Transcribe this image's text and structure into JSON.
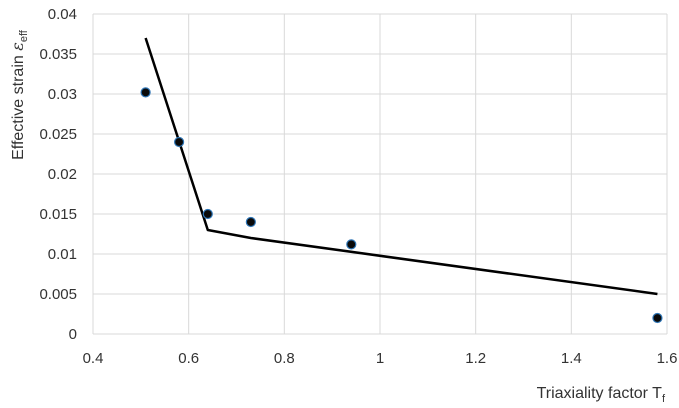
{
  "chart_data": {
    "type": "scatter",
    "title": "",
    "xlabel": {
      "main": "Triaxiality factor T",
      "sub": "f"
    },
    "ylabel": {
      "main": "Effective strain ",
      "symbol": "ε",
      "sub": "eff"
    },
    "xlim": [
      0.4,
      1.6
    ],
    "ylim": [
      0,
      0.04
    ],
    "x_ticks": [
      0.4,
      0.6,
      0.8,
      1,
      1.2,
      1.4,
      1.6
    ],
    "x_tick_labels": [
      "0.4",
      "0.6",
      "0.8",
      "1",
      "1.2",
      "1.4",
      "1.6"
    ],
    "y_ticks": [
      0,
      0.005,
      0.01,
      0.015,
      0.02,
      0.025,
      0.03,
      0.035,
      0.04
    ],
    "y_tick_labels": [
      "0",
      "0.005",
      "0.01",
      "0.015",
      "0.02",
      "0.025",
      "0.03",
      "0.035",
      "0.04"
    ],
    "grid": true,
    "series": [
      {
        "kind": "points",
        "points": [
          {
            "x": 0.51,
            "y": 0.0302
          },
          {
            "x": 0.58,
            "y": 0.024
          },
          {
            "x": 0.64,
            "y": 0.015
          },
          {
            "x": 0.73,
            "y": 0.014
          },
          {
            "x": 0.94,
            "y": 0.0112
          },
          {
            "x": 1.58,
            "y": 0.002
          }
        ],
        "color": "#0a0a0a",
        "edge_color": "#2e75b6"
      },
      {
        "kind": "line",
        "points": [
          {
            "x": 0.51,
            "y": 0.037
          },
          {
            "x": 0.64,
            "y": 0.013
          },
          {
            "x": 0.73,
            "y": 0.012
          },
          {
            "x": 1.58,
            "y": 0.005
          }
        ],
        "color": "#000000"
      }
    ],
    "grid_color": "#d9d9d9"
  }
}
